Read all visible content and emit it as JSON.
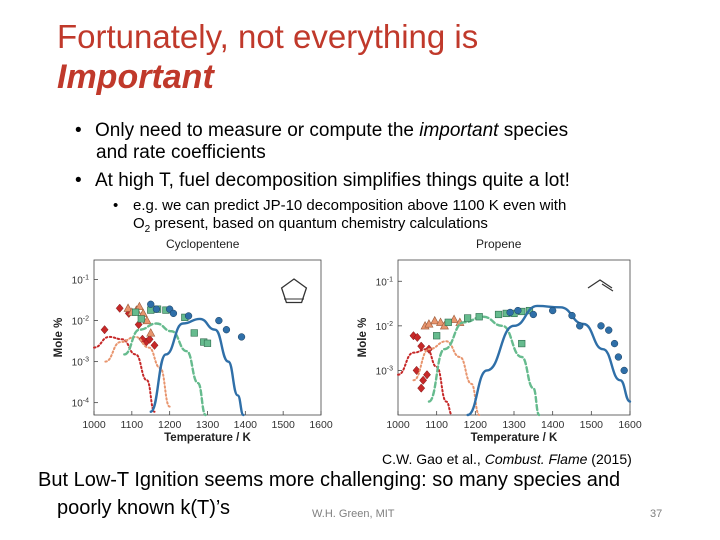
{
  "slide": {
    "title_line1": "Fortunately, not everything is",
    "title_line2": "Important",
    "bullet1_pre": "Only need to measure or compute the ",
    "bullet1_em": "important",
    "bullet1_post": " species",
    "bullet1_cont": "and rate coefficients",
    "bullet2": "At high T, fuel decomposition simplifies things quite a lot!",
    "sub1": "e.g. we can predict JP-10 decomposition above 1100 K even with",
    "sub1_cont_pre": "O",
    "sub1_sub": "2",
    "sub1_cont_post": " present, based on quantum chemistry calculations",
    "citation_pre": "C.W. Gao et al., ",
    "citation_em": "Combust. Flame",
    "citation_post": " (2015)",
    "bottom_line1": "But Low-T Ignition seems more challenging: so many species and",
    "bottom_line2": "poorly known k(T)’s",
    "footer": "W.H. Green, MIT",
    "page_number": "37",
    "bullet_char": "•"
  },
  "chart_data": [
    {
      "type": "scatter",
      "title": "Cyclopentene",
      "xlabel": "Temperature / K",
      "ylabel": "Mole %",
      "xlim": [
        1000,
        1600
      ],
      "x_ticks": [
        1000,
        1100,
        1200,
        1300,
        1400,
        1500,
        1600
      ],
      "y_scale": "log",
      "ylim": [
        5e-05,
        0.3
      ],
      "y_ticks": [
        "10^-1",
        "10^-2",
        "10^-3",
        "10^-4"
      ],
      "y_tick_values": [
        0.1,
        0.01,
        0.001,
        0.0001
      ],
      "series": [
        {
          "color": "#c62828",
          "marker": "diamond",
          "line": "dotted",
          "points": [
            [
              1028,
              0.006
            ],
            [
              1068,
              0.02
            ],
            [
              1092,
              0.015
            ],
            [
              1118,
              0.008
            ],
            [
              1138,
              0.003
            ],
            [
              1147,
              0.0035
            ],
            [
              1160,
              0.0025
            ],
            [
              1128,
              0.0035
            ]
          ],
          "curve": [
            [
              1000,
              0.0022
            ],
            [
              1040,
              0.004
            ],
            [
              1075,
              0.0035
            ],
            [
              1110,
              0.0015
            ],
            [
              1140,
              0.00035
            ],
            [
              1160,
              6e-05
            ]
          ]
        },
        {
          "color": "#e8956e",
          "marker": "triangle",
          "line": "dotted",
          "points": [
            [
              1090,
              0.02
            ],
            [
              1100,
              0.016
            ],
            [
              1112,
              0.018
            ],
            [
              1120,
              0.022
            ],
            [
              1130,
              0.015
            ],
            [
              1140,
              0.01
            ],
            [
              1150,
              0.005
            ]
          ],
          "curve": [
            [
              1030,
              0.001
            ],
            [
              1070,
              0.003
            ],
            [
              1110,
              0.004
            ],
            [
              1145,
              0.0022
            ],
            [
              1175,
              0.0007
            ],
            [
              1200,
              8e-05
            ]
          ]
        },
        {
          "color": "#66bb8e",
          "marker": "square",
          "line": "dashed",
          "points": [
            [
              1110,
              0.016
            ],
            [
              1125,
              0.011
            ],
            [
              1150,
              0.018
            ],
            [
              1168,
              0.019
            ],
            [
              1190,
              0.018
            ],
            [
              1240,
              0.012
            ],
            [
              1265,
              0.005
            ],
            [
              1290,
              0.003
            ],
            [
              1300,
              0.0028
            ]
          ],
          "curve": [
            [
              1080,
              0.0015
            ],
            [
              1120,
              0.006
            ],
            [
              1165,
              0.0085
            ],
            [
              1205,
              0.0055
            ],
            [
              1245,
              0.0018
            ],
            [
              1275,
              0.0003
            ],
            [
              1295,
              5e-05
            ]
          ]
        },
        {
          "color": "#2f6fa8",
          "marker": "circle",
          "line": "solid",
          "points": [
            [
              1150,
              0.025
            ],
            [
              1165,
              0.019
            ],
            [
              1200,
              0.019
            ],
            [
              1210,
              0.015
            ],
            [
              1250,
              0.013
            ],
            [
              1330,
              0.01
            ],
            [
              1350,
              0.006
            ],
            [
              1390,
              0.004
            ]
          ],
          "curve": [
            [
              1150,
              6e-05
            ],
            [
              1190,
              0.0015
            ],
            [
              1235,
              0.0085
            ],
            [
              1280,
              0.011
            ],
            [
              1320,
              0.006
            ],
            [
              1355,
              0.001
            ],
            [
              1380,
              0.00015
            ],
            [
              1395,
              5e-05
            ]
          ]
        }
      ]
    },
    {
      "type": "scatter",
      "title": "Propene",
      "xlabel": "Temperature / K",
      "ylabel": "Mole %",
      "xlim": [
        1000,
        1600
      ],
      "x_ticks": [
        1000,
        1100,
        1200,
        1300,
        1400,
        1500,
        1600
      ],
      "y_scale": "log",
      "ylim": [
        0.0001,
        0.3
      ],
      "y_ticks": [
        "10^-1",
        "10^-2",
        "10^-3"
      ],
      "y_tick_values": [
        0.1,
        0.01,
        0.001
      ],
      "series": [
        {
          "color": "#c62828",
          "marker": "diamond",
          "line": "dotted",
          "points": [
            [
              1040,
              0.006
            ],
            [
              1050,
              0.0055
            ],
            [
              1060,
              0.0035
            ],
            [
              1080,
              0.003
            ],
            [
              1048,
              0.001
            ],
            [
              1065,
              0.0006
            ],
            [
              1060,
              0.0004
            ],
            [
              1075,
              0.0008
            ]
          ],
          "curve": [
            [
              1000,
              0.0008
            ],
            [
              1040,
              0.0025
            ],
            [
              1075,
              0.003
            ],
            [
              1100,
              0.0012
            ],
            [
              1125,
              0.0002
            ],
            [
              1140,
              0.0001
            ]
          ]
        },
        {
          "color": "#e8956e",
          "marker": "triangle",
          "line": "dotted",
          "points": [
            [
              1070,
              0.01
            ],
            [
              1080,
              0.011
            ],
            [
              1095,
              0.013
            ],
            [
              1110,
              0.012
            ],
            [
              1120,
              0.01
            ],
            [
              1145,
              0.014
            ],
            [
              1160,
              0.012
            ]
          ],
          "curve": [
            [
              1040,
              0.0006
            ],
            [
              1080,
              0.003
            ],
            [
              1125,
              0.0045
            ],
            [
              1160,
              0.002
            ],
            [
              1190,
              0.0005
            ],
            [
              1210,
              0.0001
            ]
          ]
        },
        {
          "color": "#66bb8e",
          "marker": "square",
          "line": "dashed",
          "points": [
            [
              1100,
              0.006
            ],
            [
              1130,
              0.012
            ],
            [
              1180,
              0.015
            ],
            [
              1210,
              0.016
            ],
            [
              1260,
              0.018
            ],
            [
              1280,
              0.019
            ],
            [
              1300,
              0.019
            ],
            [
              1320,
              0.021
            ],
            [
              1340,
              0.022
            ],
            [
              1320,
              0.004
            ]
          ],
          "curve": [
            [
              1080,
              0.0002
            ],
            [
              1120,
              0.003
            ],
            [
              1170,
              0.012
            ],
            [
              1220,
              0.016
            ],
            [
              1270,
              0.01
            ],
            [
              1320,
              0.002
            ],
            [
              1350,
              0.0004
            ],
            [
              1365,
              0.0001
            ]
          ]
        },
        {
          "color": "#2f6fa8",
          "marker": "circle",
          "line": "solid",
          "points": [
            [
              1290,
              0.02
            ],
            [
              1310,
              0.022
            ],
            [
              1350,
              0.018
            ],
            [
              1400,
              0.022
            ],
            [
              1450,
              0.017
            ],
            [
              1470,
              0.01
            ],
            [
              1525,
              0.01
            ],
            [
              1545,
              0.008
            ],
            [
              1560,
              0.004
            ],
            [
              1570,
              0.002
            ],
            [
              1585,
              0.001
            ]
          ],
          "curve": [
            [
              1180,
              0.0001
            ],
            [
              1230,
              0.001
            ],
            [
              1300,
              0.01
            ],
            [
              1360,
              0.028
            ],
            [
              1420,
              0.026
            ],
            [
              1480,
              0.011
            ],
            [
              1530,
              0.003
            ],
            [
              1575,
              0.0006
            ],
            [
              1600,
              0.0002
            ]
          ]
        }
      ]
    }
  ]
}
